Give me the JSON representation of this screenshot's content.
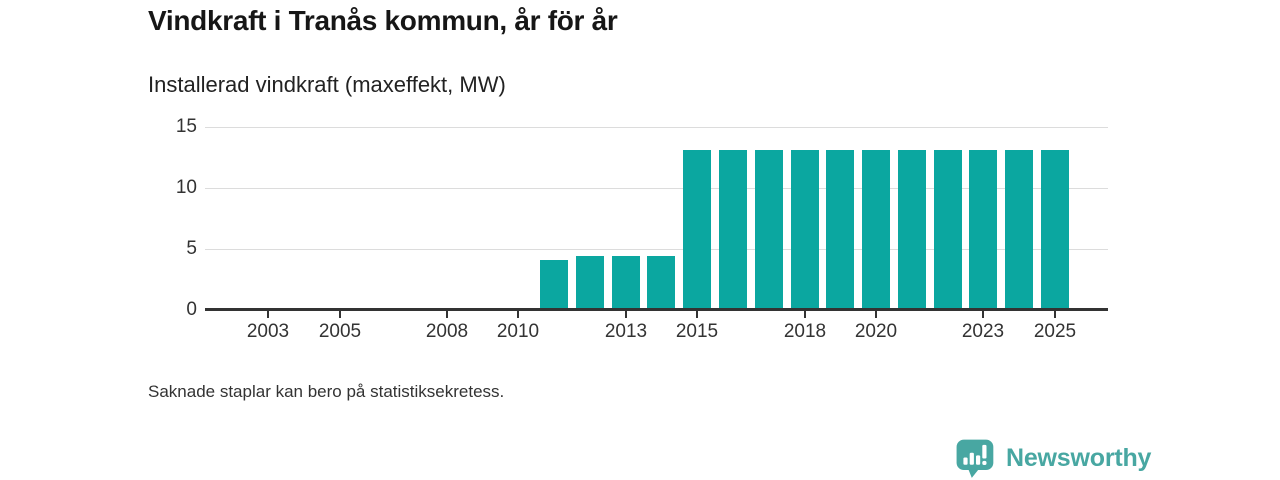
{
  "header": {
    "title": "Vindkraft i Tranås kommun, år för år",
    "subtitle": "Installerad vindkraft (maxeffekt, MW)"
  },
  "footer": {
    "note": "Saknade staplar kan bero på statistiksekretess.",
    "brand": "Newsworthy"
  },
  "colors": {
    "bar": "#0BA7A0",
    "grid": "#DCDCDC",
    "axis": "#333333",
    "label": "#333333",
    "title": "#161616",
    "brand_teal": "#48A7A2"
  },
  "chart_data": {
    "type": "bar",
    "title": "Vindkraft i Tranås kommun, år för år",
    "subtitle": "Installerad vindkraft (maxeffekt, MW)",
    "ylabel": "MW",
    "xlabel": "",
    "categories": [
      2002,
      2003,
      2004,
      2005,
      2006,
      2007,
      2008,
      2009,
      2010,
      2011,
      2012,
      2013,
      2014,
      2015,
      2016,
      2017,
      2018,
      2019,
      2020,
      2021,
      2022,
      2023,
      2024,
      2025
    ],
    "values": [
      null,
      null,
      null,
      null,
      null,
      null,
      null,
      null,
      null,
      4.1,
      4.4,
      4.4,
      4.4,
      13.1,
      13.1,
      13.1,
      13.1,
      13.1,
      13.1,
      13.1,
      13.1,
      13.1,
      13.1,
      13.1
    ],
    "x_ticks": [
      2003,
      2005,
      2008,
      2010,
      2013,
      2015,
      2018,
      2020,
      2023,
      2025
    ],
    "y_ticks": [
      0,
      5,
      10,
      15
    ],
    "ylim": [
      0,
      15.8
    ],
    "grid": "horizontal",
    "legend": "none",
    "missing_note": "Saknade staplar kan bero på statistiksekretess."
  }
}
